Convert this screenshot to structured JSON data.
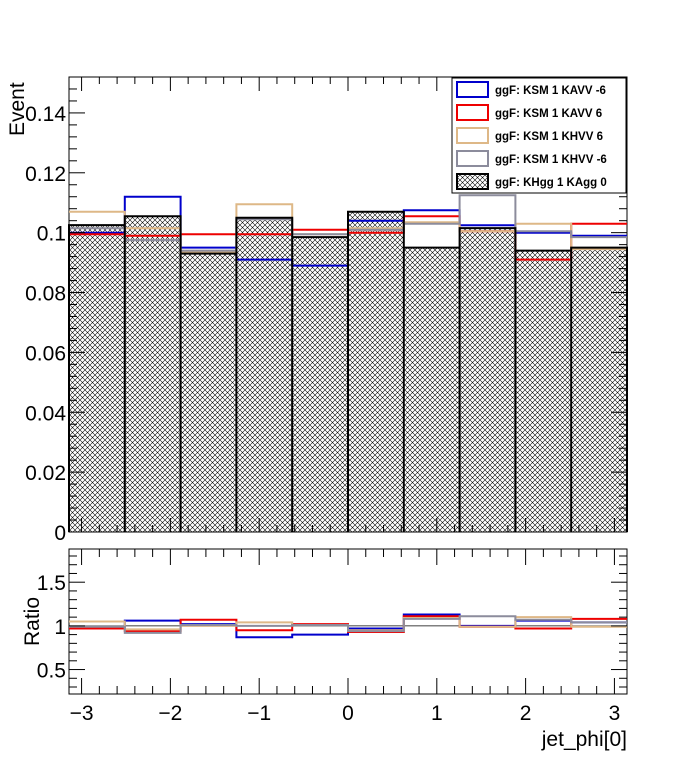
{
  "chart_data": [
    {
      "type": "histogram",
      "ylabel": "Event",
      "xlim": [
        -3.1416,
        3.1416
      ],
      "ylim": [
        0,
        0.152
      ],
      "y_ticks": [
        0,
        0.02,
        0.04,
        0.06,
        0.08,
        0.1,
        0.12,
        0.14
      ],
      "y_tick_labels": [
        "0",
        "0.02",
        "0.04",
        "0.06",
        "0.08",
        "0.1",
        "0.12",
        "0.14"
      ],
      "bin_edges": [
        -3.1416,
        -2.5133,
        -1.885,
        -1.2566,
        -0.6283,
        0.0,
        0.6283,
        1.2566,
        1.885,
        2.5133,
        3.1416
      ],
      "series": [
        {
          "name": "ggF: KSM 1 KAVV -6",
          "color": "#0000cc",
          "style": "line",
          "values": [
            0.1,
            0.112,
            0.095,
            0.091,
            0.089,
            0.104,
            0.1075,
            0.1025,
            0.1,
            0.099
          ]
        },
        {
          "name": "ggF: KSM 1 KAVV 6",
          "color": "#ee0000",
          "style": "line",
          "values": [
            0.0995,
            0.099,
            0.0995,
            0.0995,
            0.101,
            0.1,
            0.1055,
            0.1005,
            0.091,
            0.103
          ]
        },
        {
          "name": "ggF: KSM 1 KHVV 6",
          "color": "#deb887",
          "style": "line",
          "values": [
            0.107,
            0.1015,
            0.0935,
            0.1095,
            0.0995,
            0.1015,
            0.1035,
            0.1005,
            0.103,
            0.0945
          ]
        },
        {
          "name": "ggF: KSM 1 KHVV -6",
          "color": "#8c8c9c",
          "style": "line",
          "values": [
            0.1015,
            0.0975,
            0.094,
            0.1045,
            0.0995,
            0.101,
            0.103,
            0.1125,
            0.1005,
            0.0985
          ]
        },
        {
          "name": "ggF: KHgg 1 KAgg 0",
          "color": "#000000",
          "style": "hatched",
          "values": [
            0.1025,
            0.1055,
            0.093,
            0.105,
            0.0985,
            0.107,
            0.095,
            0.1015,
            0.094,
            0.095
          ]
        }
      ],
      "legend": "top-right"
    },
    {
      "type": "histogram",
      "xlabel": "jet_phi[0]",
      "ylabel": "Ratio",
      "xlim": [
        -3.1416,
        3.1416
      ],
      "ylim": [
        0.22,
        1.88
      ],
      "y_ticks": [
        0.5,
        1,
        1.5
      ],
      "y_tick_labels": [
        "0.5",
        "1",
        "1.5"
      ],
      "x_ticks": [
        -3,
        -2,
        -1,
        0,
        1,
        2,
        3
      ],
      "x_tick_labels": [
        "−3",
        "−2",
        "−1",
        "0",
        "1",
        "2",
        "3"
      ],
      "reference_line": 1,
      "bin_edges": [
        -3.1416,
        -2.5133,
        -1.885,
        -1.2566,
        -0.6283,
        0.0,
        0.6283,
        1.2566,
        1.885,
        2.5133,
        3.1416
      ],
      "series": [
        {
          "name": "ggF: KSM 1 KAVV -6",
          "color": "#0000cc",
          "values": [
            0.98,
            1.06,
            1.02,
            0.87,
            0.9,
            0.97,
            1.13,
            1.0,
            1.06,
            1.04
          ]
        },
        {
          "name": "ggF: KSM 1 KAVV 6",
          "color": "#ee0000",
          "values": [
            0.97,
            0.94,
            1.07,
            0.95,
            1.02,
            0.93,
            1.11,
            0.99,
            0.97,
            1.08
          ]
        },
        {
          "name": "ggF: KSM 1 KHVV 6",
          "color": "#deb887",
          "values": [
            1.05,
            0.96,
            1.0,
            1.04,
            1.01,
            0.95,
            1.09,
            0.99,
            1.1,
            0.99
          ]
        },
        {
          "name": "ggF: KSM 1 KHVV -6",
          "color": "#8c8c9c",
          "values": [
            0.99,
            0.92,
            1.01,
            1.0,
            1.01,
            0.94,
            1.08,
            1.11,
            1.07,
            1.04
          ]
        }
      ]
    }
  ]
}
